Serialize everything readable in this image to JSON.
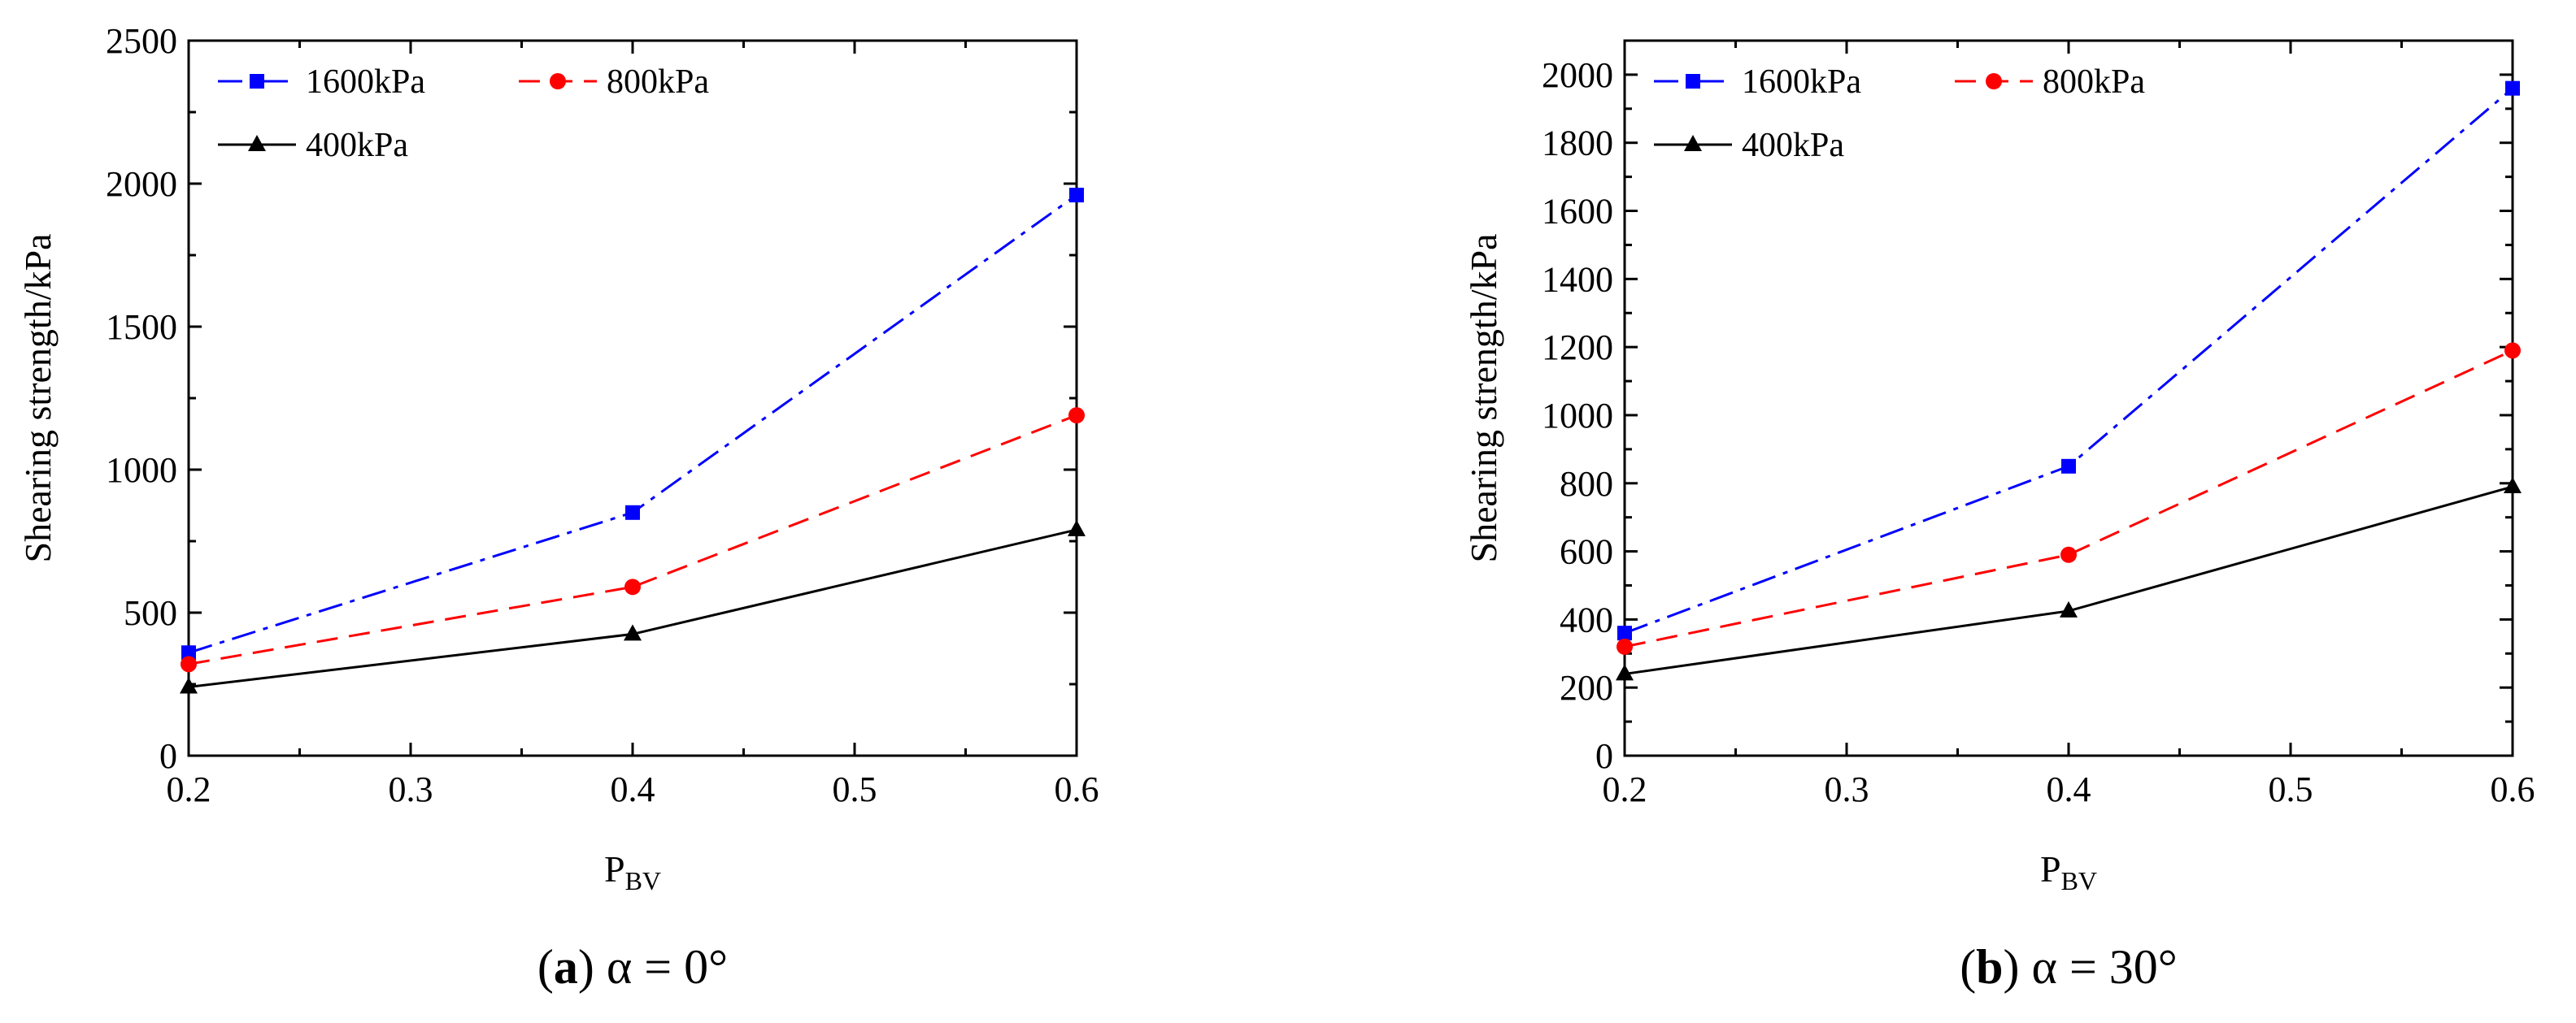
{
  "colors": {
    "series_1600": "#0000ff",
    "series_800": "#ff0000",
    "series_400": "#000000",
    "axis": "#000000"
  },
  "chart_data": [
    {
      "type": "line",
      "panel": "a",
      "caption": {
        "letter": "a",
        "text": "α = 0°"
      },
      "xlabel": "P",
      "xlabel_sub": "BV",
      "ylabel": "Shearing strength/kPa",
      "x": [
        0.2,
        0.4,
        0.6
      ],
      "xlim": [
        0.2,
        0.6
      ],
      "ylim": [
        0,
        2500
      ],
      "xticks": [
        0.2,
        0.3,
        0.4,
        0.5,
        0.6
      ],
      "xtick_labels": [
        "0.2",
        "0.3",
        "0.4",
        "0.5",
        "0.6"
      ],
      "yticks": [
        0,
        500,
        1000,
        1500,
        2000,
        2500
      ],
      "ytick_labels": [
        "0",
        "500",
        "1000",
        "1500",
        "2000",
        "2500"
      ],
      "series": [
        {
          "name": "1600kPa",
          "values": [
            360,
            850,
            1960
          ],
          "color": "#0000ff",
          "dash": "dash-dot",
          "marker": "square"
        },
        {
          "name": "800kPa",
          "values": [
            320,
            590,
            1190
          ],
          "color": "#ff0000",
          "dash": "dash",
          "marker": "circle"
        },
        {
          "name": "400kPa",
          "values": [
            240,
            425,
            790
          ],
          "color": "#000000",
          "dash": "solid",
          "marker": "triangle"
        }
      ]
    },
    {
      "type": "line",
      "panel": "b",
      "caption": {
        "letter": "b",
        "text": "α = 30°"
      },
      "xlabel": "P",
      "xlabel_sub": "BV",
      "ylabel": "Shearing strength/kPa",
      "x": [
        0.2,
        0.4,
        0.6
      ],
      "xlim": [
        0.2,
        0.6
      ],
      "ylim": [
        0,
        2100
      ],
      "xticks": [
        0.2,
        0.3,
        0.4,
        0.5,
        0.6
      ],
      "xtick_labels": [
        "0.2",
        "0.3",
        "0.4",
        "0.5",
        "0.6"
      ],
      "yticks": [
        0,
        200,
        400,
        600,
        800,
        1000,
        1200,
        1400,
        1600,
        1800,
        2000
      ],
      "ytick_labels": [
        "0",
        "200",
        "400",
        "600",
        "800",
        "1000",
        "1200",
        "1400",
        "1600",
        "1800",
        "2000"
      ],
      "series": [
        {
          "name": "1600kPa",
          "values": [
            360,
            850,
            1960
          ],
          "color": "#0000ff",
          "dash": "dash-dot",
          "marker": "square"
        },
        {
          "name": "800kPa",
          "values": [
            320,
            590,
            1190
          ],
          "color": "#ff0000",
          "dash": "dash",
          "marker": "circle"
        },
        {
          "name": "400kPa",
          "values": [
            240,
            425,
            790
          ],
          "color": "#000000",
          "dash": "solid",
          "marker": "triangle"
        }
      ]
    }
  ]
}
